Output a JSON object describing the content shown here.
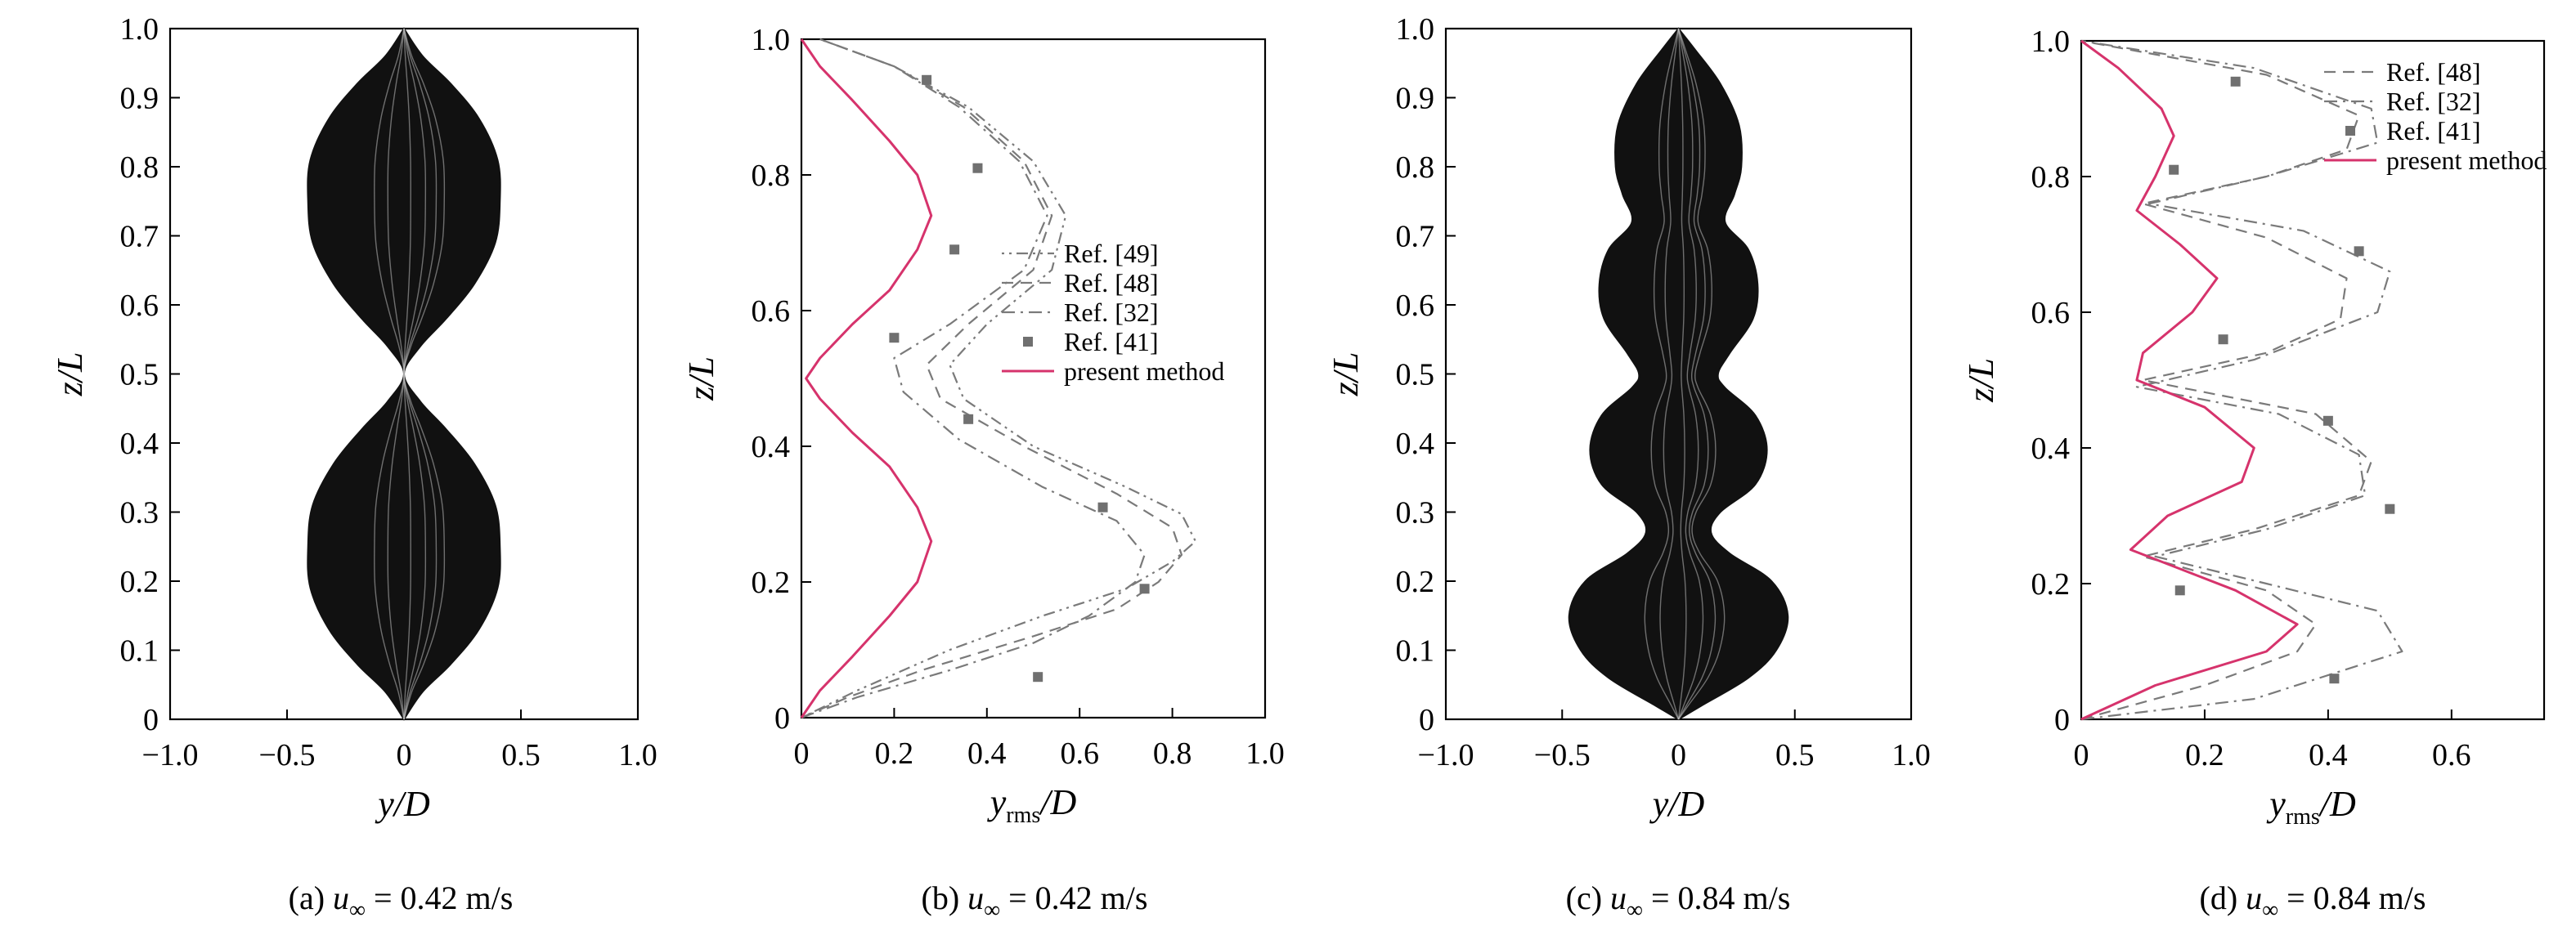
{
  "colors": {
    "present": "#d6336c",
    "ref": "#7a7a7a",
    "ref_blue": "#5a6fcf",
    "marker": "#707070",
    "envelope": "#111111"
  },
  "chart_data": [
    {
      "id": "a",
      "type": "envelope",
      "caption": {
        "label": "(a) ",
        "var": "u",
        "sub": "∞",
        "rest": " = 0.42 m/s"
      },
      "xlabel": {
        "main": "y",
        "rest": "/D",
        "sub": ""
      },
      "ylabel": "z/L",
      "xlim": [
        -1.0,
        1.0
      ],
      "ylim": [
        0,
        1.0
      ],
      "xticks": [
        "−1.0",
        "−0.5",
        "0",
        "0.5",
        "1.0"
      ],
      "xtick_values": [
        -1.0,
        -0.5,
        0,
        0.5,
        1.0
      ],
      "yticks": [
        "0",
        "0.1",
        "0.2",
        "0.3",
        "0.4",
        "0.5",
        "0.6",
        "0.7",
        "0.8",
        "0.9",
        "1.0"
      ],
      "ytick_values": [
        0,
        0.1,
        0.2,
        0.3,
        0.4,
        0.5,
        0.6,
        0.7,
        0.8,
        0.9,
        1.0
      ],
      "envelope_z": [
        0,
        0.04,
        0.08,
        0.13,
        0.19,
        0.25,
        0.31,
        0.37,
        0.42,
        0.46,
        0.5,
        0.54,
        0.58,
        0.63,
        0.69,
        0.75,
        0.81,
        0.87,
        0.92,
        0.96,
        1.0
      ],
      "envelope_y": [
        0,
        0.08,
        0.2,
        0.32,
        0.4,
        0.41,
        0.39,
        0.3,
        0.18,
        0.07,
        0.0,
        0.07,
        0.18,
        0.3,
        0.39,
        0.41,
        0.4,
        0.32,
        0.2,
        0.08,
        0
      ]
    },
    {
      "id": "b",
      "type": "line",
      "caption": {
        "label": "(b) ",
        "var": "u",
        "sub": "∞",
        "rest": " = 0.42 m/s"
      },
      "xlabel": {
        "main": "y",
        "rest": "/D",
        "sub": "rms"
      },
      "ylabel": "z/L",
      "xlim": [
        0,
        1.0
      ],
      "ylim": [
        0,
        1.0
      ],
      "xticks": [
        "0",
        "0.2",
        "0.4",
        "0.6",
        "0.8",
        "1.0"
      ],
      "xtick_values": [
        0,
        0.2,
        0.4,
        0.6,
        0.8,
        1.0
      ],
      "yticks": [
        "0",
        "0.2",
        "0.4",
        "0.6",
        "0.8",
        "1.0"
      ],
      "ytick_values": [
        0,
        0.2,
        0.4,
        0.6,
        0.8,
        1.0
      ],
      "legend": {
        "position": "center-right"
      },
      "series": [
        {
          "name": "Ref. [49]",
          "style": "dotdotdash",
          "x": [
            0,
            0.12,
            0.32,
            0.52,
            0.7,
            0.8,
            0.85,
            0.82,
            0.7,
            0.5,
            0.35,
            0.32,
            0.4,
            0.54,
            0.57,
            0.5,
            0.36,
            0.2,
            0.04
          ],
          "y": [
            0,
            0.04,
            0.1,
            0.15,
            0.19,
            0.23,
            0.26,
            0.3,
            0.34,
            0.4,
            0.47,
            0.52,
            0.58,
            0.66,
            0.74,
            0.82,
            0.9,
            0.96,
            1.0
          ]
        },
        {
          "name": "Ref. [48]",
          "style": "dash",
          "x": [
            0,
            0.1,
            0.26,
            0.5,
            0.68,
            0.77,
            0.82,
            0.8,
            0.68,
            0.48,
            0.3,
            0.27,
            0.36,
            0.5,
            0.54,
            0.48,
            0.35,
            0.2,
            0.04
          ],
          "y": [
            0,
            0.03,
            0.07,
            0.12,
            0.16,
            0.2,
            0.24,
            0.28,
            0.33,
            0.4,
            0.47,
            0.52,
            0.58,
            0.66,
            0.74,
            0.82,
            0.9,
            0.96,
            1.0
          ]
        },
        {
          "name": "Ref. [32]",
          "style": "dashdot",
          "x": [
            0,
            0.12,
            0.32,
            0.5,
            0.62,
            0.72,
            0.74,
            0.68,
            0.52,
            0.34,
            0.22,
            0.2,
            0.32,
            0.48,
            0.53,
            0.47,
            0.34,
            0.2,
            0.04
          ],
          "y": [
            0,
            0.03,
            0.07,
            0.11,
            0.15,
            0.2,
            0.24,
            0.29,
            0.34,
            0.41,
            0.48,
            0.53,
            0.58,
            0.66,
            0.74,
            0.82,
            0.9,
            0.96,
            1.0
          ]
        },
        {
          "name": "Ref. [41]",
          "style": "marker",
          "x": [
            0.51,
            0.74,
            0.65,
            0.36,
            0.2,
            0.33,
            0.38,
            0.27
          ],
          "y": [
            0.06,
            0.19,
            0.31,
            0.44,
            0.56,
            0.69,
            0.81,
            0.94
          ]
        },
        {
          "name": "present method",
          "style": "solid",
          "x": [
            0,
            0.04,
            0.11,
            0.19,
            0.25,
            0.28,
            0.25,
            0.19,
            0.11,
            0.04,
            0.01,
            0.04,
            0.11,
            0.19,
            0.25,
            0.28,
            0.25,
            0.19,
            0.11,
            0.04,
            0
          ],
          "y": [
            0,
            0.04,
            0.09,
            0.15,
            0.2,
            0.26,
            0.31,
            0.37,
            0.42,
            0.47,
            0.5,
            0.53,
            0.58,
            0.63,
            0.69,
            0.74,
            0.8,
            0.85,
            0.91,
            0.96,
            1.0
          ]
        }
      ]
    },
    {
      "id": "c",
      "type": "envelope",
      "caption": {
        "label": "(c) ",
        "var": "u",
        "sub": "∞",
        "rest": " = 0.84 m/s"
      },
      "xlabel": {
        "main": "y",
        "rest": "/D",
        "sub": ""
      },
      "ylabel": "z/L",
      "xlim": [
        -1.0,
        1.0
      ],
      "ylim": [
        0,
        1.0
      ],
      "xticks": [
        "−1.0",
        "−0.5",
        "0",
        "0.5",
        "1.0"
      ],
      "xtick_values": [
        -1.0,
        -0.5,
        0,
        0.5,
        1.0
      ],
      "yticks": [
        "0",
        "0.1",
        "0.2",
        "0.3",
        "0.4",
        "0.5",
        "0.6",
        "0.7",
        "0.8",
        "0.9",
        "1.0"
      ],
      "ytick_values": [
        0,
        0.1,
        0.2,
        0.3,
        0.4,
        0.5,
        0.6,
        0.7,
        0.8,
        0.9,
        1.0
      ],
      "envelope_z": [
        0,
        0.02,
        0.06,
        0.1,
        0.15,
        0.2,
        0.24,
        0.27,
        0.3,
        0.34,
        0.39,
        0.44,
        0.48,
        0.5,
        0.53,
        0.58,
        0.63,
        0.68,
        0.72,
        0.76,
        0.8,
        0.86,
        0.92,
        0.97,
        1.0
      ],
      "envelope_y": [
        0,
        0.1,
        0.3,
        0.42,
        0.47,
        0.4,
        0.22,
        0.14,
        0.18,
        0.33,
        0.38,
        0.33,
        0.2,
        0.17,
        0.22,
        0.32,
        0.34,
        0.3,
        0.2,
        0.24,
        0.27,
        0.26,
        0.18,
        0.07,
        0
      ]
    },
    {
      "id": "d",
      "type": "line",
      "caption": {
        "label": "(d) ",
        "var": "u",
        "sub": "∞",
        "rest": " = 0.84 m/s"
      },
      "xlabel": {
        "main": "y",
        "rest": "/D",
        "sub": "rms"
      },
      "ylabel": "z/L",
      "xlim": [
        0,
        0.75
      ],
      "ylim": [
        0,
        1.0
      ],
      "xticks": [
        "0",
        "0.2",
        "0.4",
        "0.6"
      ],
      "xtick_values": [
        0,
        0.2,
        0.4,
        0.6
      ],
      "yticks": [
        "0",
        "0.2",
        "0.4",
        "0.6",
        "0.8",
        "1.0"
      ],
      "ytick_values": [
        0,
        0.2,
        0.4,
        0.6,
        0.8,
        1.0
      ],
      "legend": {
        "position": "top-right"
      },
      "series": [
        {
          "name": "Ref. [48]",
          "style": "dash",
          "x": [
            0,
            0.2,
            0.35,
            0.38,
            0.3,
            0.1,
            0.28,
            0.45,
            0.47,
            0.38,
            0.1,
            0.3,
            0.42,
            0.43,
            0.3,
            0.1,
            0.3,
            0.43,
            0.45,
            0.3,
            0
          ],
          "y": [
            0,
            0.05,
            0.1,
            0.14,
            0.19,
            0.24,
            0.28,
            0.33,
            0.38,
            0.45,
            0.5,
            0.54,
            0.59,
            0.65,
            0.71,
            0.76,
            0.8,
            0.84,
            0.89,
            0.95,
            1.0
          ]
        },
        {
          "name": "Ref. [32]",
          "style": "dashdot",
          "x": [
            0,
            0.28,
            0.52,
            0.48,
            0.3,
            0.12,
            0.3,
            0.46,
            0.45,
            0.32,
            0.09,
            0.28,
            0.48,
            0.5,
            0.36,
            0.11,
            0.3,
            0.48,
            0.47,
            0.28,
            0
          ],
          "y": [
            0,
            0.03,
            0.1,
            0.16,
            0.2,
            0.24,
            0.28,
            0.33,
            0.39,
            0.45,
            0.49,
            0.53,
            0.6,
            0.66,
            0.72,
            0.76,
            0.8,
            0.85,
            0.9,
            0.96,
            1.0
          ]
        },
        {
          "name": "Ref. [41]",
          "style": "marker",
          "x": [
            0.41,
            0.16,
            0.5,
            0.4,
            0.23,
            0.45,
            0.15,
            0.25
          ],
          "y": [
            0.06,
            0.19,
            0.31,
            0.44,
            0.56,
            0.69,
            0.81,
            0.94
          ]
        },
        {
          "name": "present method",
          "style": "solid",
          "x": [
            0,
            0.12,
            0.3,
            0.35,
            0.25,
            0.08,
            0.14,
            0.26,
            0.28,
            0.2,
            0.09,
            0.1,
            0.18,
            0.22,
            0.16,
            0.09,
            0.12,
            0.15,
            0.13,
            0.06,
            0
          ],
          "y": [
            0,
            0.05,
            0.1,
            0.14,
            0.19,
            0.25,
            0.3,
            0.35,
            0.4,
            0.46,
            0.5,
            0.54,
            0.6,
            0.65,
            0.7,
            0.75,
            0.8,
            0.86,
            0.9,
            0.96,
            1.0
          ]
        }
      ]
    }
  ]
}
